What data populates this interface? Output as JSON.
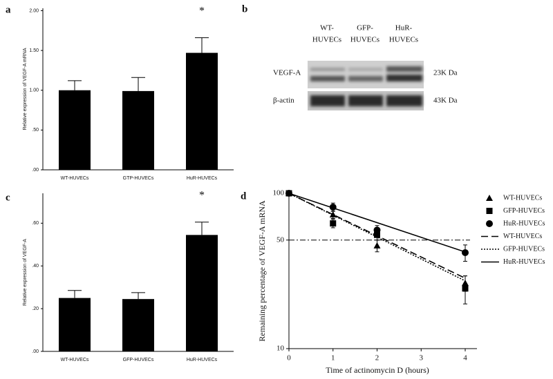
{
  "chart_data": [
    {
      "type": "bar",
      "panel_label": "a",
      "ylabel": "Relative expression of VEGF-A mRNA",
      "categories": [
        "WT-HUVECs",
        "GTP-HUVECs",
        "HuR-HUVECs"
      ],
      "values": [
        1.0,
        0.99,
        1.47
      ],
      "errors": [
        0.12,
        0.17,
        0.19
      ],
      "color": "#000000",
      "ylim": [
        0,
        2.03
      ],
      "yticks": [
        {
          "value": 0,
          "label": ".00"
        },
        {
          "value": 0.5,
          "label": ".50"
        },
        {
          "value": 1,
          "label": "1.00"
        },
        {
          "value": 1.5,
          "label": "1.50"
        },
        {
          "value": 2,
          "label": "2.00"
        }
      ],
      "annotations": [
        {
          "text": "*",
          "at": "HuR-HUVECs"
        }
      ]
    },
    {
      "type": "bar",
      "panel_label": "c",
      "ylabel": "Relative expression of VEGF-A",
      "categories": [
        "WT-HUVECs",
        "GFP-HUVECs",
        "HuR-HUVECs"
      ],
      "values": [
        0.25,
        0.245,
        0.545
      ],
      "errors": [
        0.035,
        0.03,
        0.06
      ],
      "color": "#000000",
      "ylim": [
        0,
        0.74
      ],
      "yticks": [
        {
          "value": 0,
          "label": ".00"
        },
        {
          "value": 0.2,
          "label": ".20"
        },
        {
          "value": 0.4,
          "label": ".40"
        },
        {
          "value": 0.6,
          "label": ".60"
        }
      ],
      "annotations": [
        {
          "text": "*",
          "at": "HuR-HUVECs"
        }
      ]
    },
    {
      "type": "line",
      "panel_label": "d",
      "xlabel": "Time of actinomycin D (hours)",
      "ylabel": "Remaining percentage of VEGF-A mRNA",
      "log_y": true,
      "xlim": [
        0,
        4
      ],
      "ylim": [
        10,
        100
      ],
      "xticks": [
        0,
        1,
        2,
        3,
        4
      ],
      "yticks": [
        10,
        50,
        100
      ],
      "reference_line": 50,
      "series": [
        {
          "name": "WT-HUVECs",
          "marker": "triangle",
          "color": "#000000",
          "x": [
            0,
            1,
            2,
            4
          ],
          "values": [
            100,
            72.8,
            46,
            26.4
          ],
          "errors": [
            0,
            4,
            4,
            3
          ]
        },
        {
          "name": "GFP-HUVECs",
          "marker": "square",
          "color": "#000000",
          "x": [
            0,
            1,
            2,
            4
          ],
          "values": [
            100,
            64,
            54,
            24.4
          ],
          "errors": [
            0,
            4,
            4,
            5
          ]
        },
        {
          "name": "HuR-HUVECs",
          "marker": "circle",
          "color": "#000000",
          "x": [
            0,
            1,
            2,
            4
          ],
          "values": [
            100,
            81.5,
            58,
            41.5
          ],
          "errors": [
            0,
            5,
            4,
            5
          ]
        },
        {
          "name": "WT-HUVECs",
          "dash": "dashed",
          "color": "#000000",
          "x": [
            0,
            4
          ],
          "values": [
            100,
            28.4
          ]
        },
        {
          "name": "GFP-HUVECs",
          "dash": "dotted",
          "color": "#000000",
          "x": [
            0,
            4
          ],
          "values": [
            100,
            27.3
          ]
        },
        {
          "name": "HuR-HUVECs",
          "dash": "solid",
          "color": "#000000",
          "x": [
            0,
            4
          ],
          "values": [
            100,
            41.9
          ]
        }
      ]
    }
  ],
  "blot": {
    "panel_label": "b",
    "columns": [
      [
        "WT-",
        "HUVECs"
      ],
      [
        "GFP-",
        "HUVECs"
      ],
      [
        "HuR-",
        "HUVECs"
      ]
    ],
    "rows": [
      {
        "protein": "VEGF-A",
        "size": "23K Da"
      },
      {
        "protein": "β-actin",
        "size": "43K Da"
      }
    ]
  }
}
